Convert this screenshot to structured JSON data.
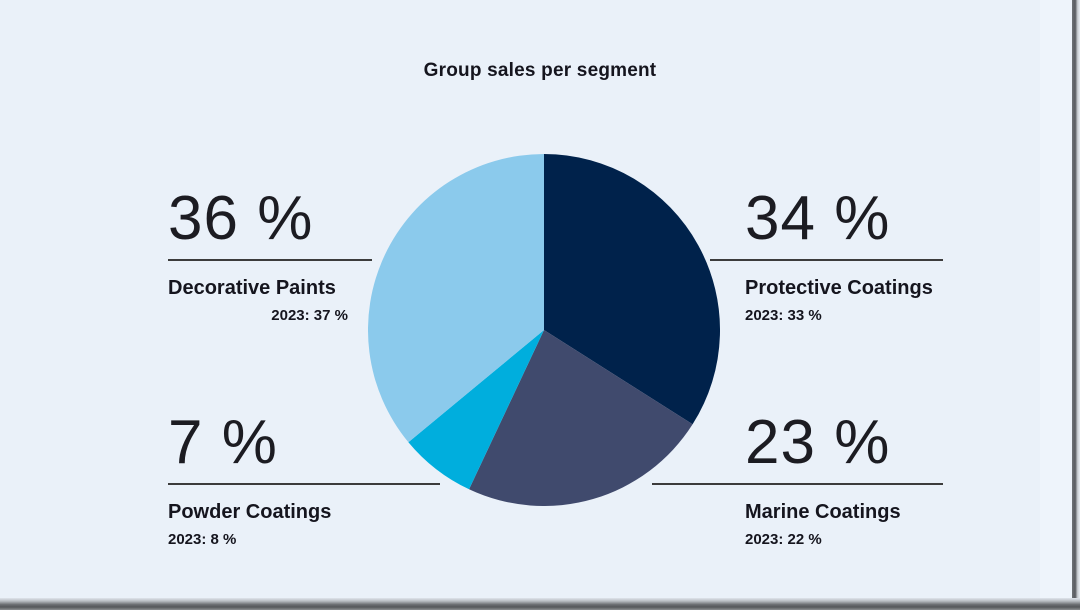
{
  "page": {
    "background_color": "#eaf1f9",
    "title": "Group sales per segment"
  },
  "chart_data": {
    "type": "pie",
    "title": "Group sales per segment",
    "start_angle_deg": 0,
    "direction": "clockwise",
    "legend_position": "labels-around-pie",
    "segments": [
      {
        "label": "Protective Coatings",
        "value": 34,
        "display": "34 %",
        "prior_year": "2023: 33 %",
        "color": "#00224b"
      },
      {
        "label": "Marine Coatings",
        "value": 23,
        "display": "23 %",
        "prior_year": "2023: 22 %",
        "color": "#404a6d"
      },
      {
        "label": "Powder Coatings",
        "value": 7,
        "display": "7 %",
        "prior_year": "2023: 8 %",
        "color": "#00aedd"
      },
      {
        "label": "Decorative Paints",
        "value": 36,
        "display": "36 %",
        "prior_year": "2023: 37 %",
        "color": "#8bcaec"
      }
    ]
  },
  "colors": {
    "text": "#15151e",
    "divider": "#3c3c3c",
    "page_background": "#eaf1f9"
  }
}
